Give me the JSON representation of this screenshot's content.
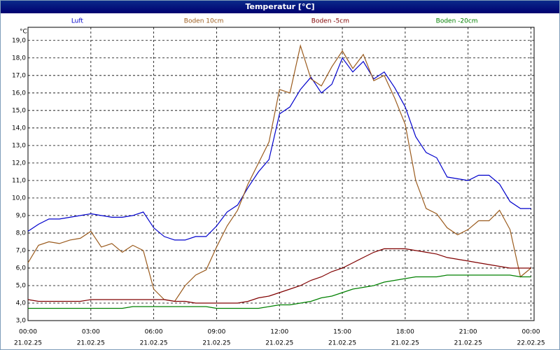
{
  "chart_data": {
    "type": "line",
    "title": "Temperatur [°C]",
    "y_unit": "°C",
    "x": [
      0,
      0.5,
      1,
      1.5,
      2,
      2.5,
      3,
      3.5,
      4,
      4.5,
      5,
      5.5,
      6,
      6.5,
      7,
      7.5,
      8,
      8.5,
      9,
      9.5,
      10,
      10.5,
      11,
      11.5,
      12,
      12.5,
      13,
      13.5,
      14,
      14.5,
      15,
      15.5,
      16,
      16.5,
      17,
      17.5,
      18,
      18.5,
      19,
      19.5,
      20,
      20.5,
      21,
      21.5,
      22,
      22.5,
      23,
      23.5,
      24
    ],
    "series": [
      {
        "name": "Luft",
        "color": "#0000cc",
        "values": [
          8.1,
          8.5,
          8.8,
          8.8,
          8.9,
          9.0,
          9.1,
          9.0,
          8.9,
          8.9,
          9.0,
          9.2,
          8.3,
          7.8,
          7.6,
          7.6,
          7.8,
          7.8,
          8.4,
          9.2,
          9.6,
          10.6,
          11.5,
          12.2,
          14.8,
          15.2,
          16.2,
          16.9,
          16.0,
          16.5,
          18.0,
          17.2,
          17.8,
          16.8,
          17.2,
          16.3,
          15.2,
          13.5,
          12.6,
          12.3,
          11.2,
          11.1,
          11.0,
          11.3,
          11.3,
          10.8,
          9.8,
          9.4,
          9.4
        ]
      },
      {
        "name": "Boden 10cm",
        "color": "#9a5a1c",
        "values": [
          6.3,
          7.3,
          7.5,
          7.4,
          7.6,
          7.7,
          8.1,
          7.2,
          7.4,
          6.9,
          7.3,
          7.0,
          4.8,
          4.2,
          4.1,
          5.0,
          5.6,
          5.9,
          7.2,
          8.4,
          9.3,
          10.8,
          12.0,
          13.2,
          16.2,
          16.0,
          18.7,
          16.8,
          16.4,
          17.5,
          18.4,
          17.4,
          18.2,
          16.7,
          17.0,
          15.7,
          14.2,
          11.0,
          9.4,
          9.1,
          8.3,
          7.9,
          8.2,
          8.7,
          8.7,
          9.3,
          8.2,
          5.5,
          6.0
        ]
      },
      {
        "name": "Boden -5cm",
        "color": "#800000",
        "values": [
          4.2,
          4.1,
          4.1,
          4.1,
          4.1,
          4.1,
          4.2,
          4.2,
          4.2,
          4.2,
          4.2,
          4.2,
          4.2,
          4.2,
          4.1,
          4.1,
          4.0,
          4.0,
          4.0,
          4.0,
          4.0,
          4.1,
          4.3,
          4.4,
          4.6,
          4.8,
          5.0,
          5.3,
          5.5,
          5.8,
          6.0,
          6.3,
          6.6,
          6.9,
          7.1,
          7.1,
          7.1,
          7.0,
          6.9,
          6.8,
          6.6,
          6.5,
          6.4,
          6.3,
          6.2,
          6.1,
          6.0,
          6.0,
          6.0
        ]
      },
      {
        "name": "Boden -20cm",
        "color": "#008000",
        "values": [
          3.7,
          3.7,
          3.7,
          3.7,
          3.7,
          3.7,
          3.7,
          3.7,
          3.7,
          3.7,
          3.8,
          3.8,
          3.8,
          3.8,
          3.8,
          3.8,
          3.8,
          3.8,
          3.7,
          3.7,
          3.7,
          3.7,
          3.7,
          3.8,
          3.9,
          3.9,
          4.0,
          4.1,
          4.3,
          4.4,
          4.6,
          4.8,
          4.9,
          5.0,
          5.2,
          5.3,
          5.4,
          5.5,
          5.5,
          5.5,
          5.6,
          5.6,
          5.6,
          5.6,
          5.6,
          5.6,
          5.6,
          5.5,
          5.5
        ]
      }
    ],
    "xlim": [
      0,
      24.15
    ],
    "xticks": [
      {
        "value": 0,
        "label": "00:00"
      },
      {
        "value": 3,
        "label": "03:00"
      },
      {
        "value": 6,
        "label": "06:00"
      },
      {
        "value": 9,
        "label": "09:00"
      },
      {
        "value": 12,
        "label": "12:00"
      },
      {
        "value": 15,
        "label": "15:00"
      },
      {
        "value": 18,
        "label": "18:00"
      },
      {
        "value": 21,
        "label": "21:00"
      },
      {
        "value": 24,
        "label": "00:00"
      }
    ],
    "xtick_dates": [
      "21.02.25",
      "21.02.25",
      "21.02.25",
      "21.02.25",
      "21.02.25",
      "21.02.25",
      "21.02.25",
      "21.02.25",
      "22.02.25"
    ],
    "ylim": [
      3,
      19.75
    ],
    "yticks": [
      {
        "value": 3,
        "label": "3,0"
      },
      {
        "value": 4,
        "label": "4,0"
      },
      {
        "value": 5,
        "label": "5,0"
      },
      {
        "value": 6,
        "label": "6,0"
      },
      {
        "value": 7,
        "label": "7,0"
      },
      {
        "value": 8,
        "label": "8,0"
      },
      {
        "value": 9,
        "label": "9,0"
      },
      {
        "value": 10,
        "label": "10,0"
      },
      {
        "value": 11,
        "label": "11,0"
      },
      {
        "value": 12,
        "label": "12,0"
      },
      {
        "value": 13,
        "label": "13,0"
      },
      {
        "value": 14,
        "label": "14,0"
      },
      {
        "value": 15,
        "label": "15,0"
      },
      {
        "value": 16,
        "label": "16,0"
      },
      {
        "value": 17,
        "label": "17,0"
      },
      {
        "value": 18,
        "label": "18,0"
      },
      {
        "value": 19,
        "label": "19,0"
      }
    ],
    "grid": true
  }
}
